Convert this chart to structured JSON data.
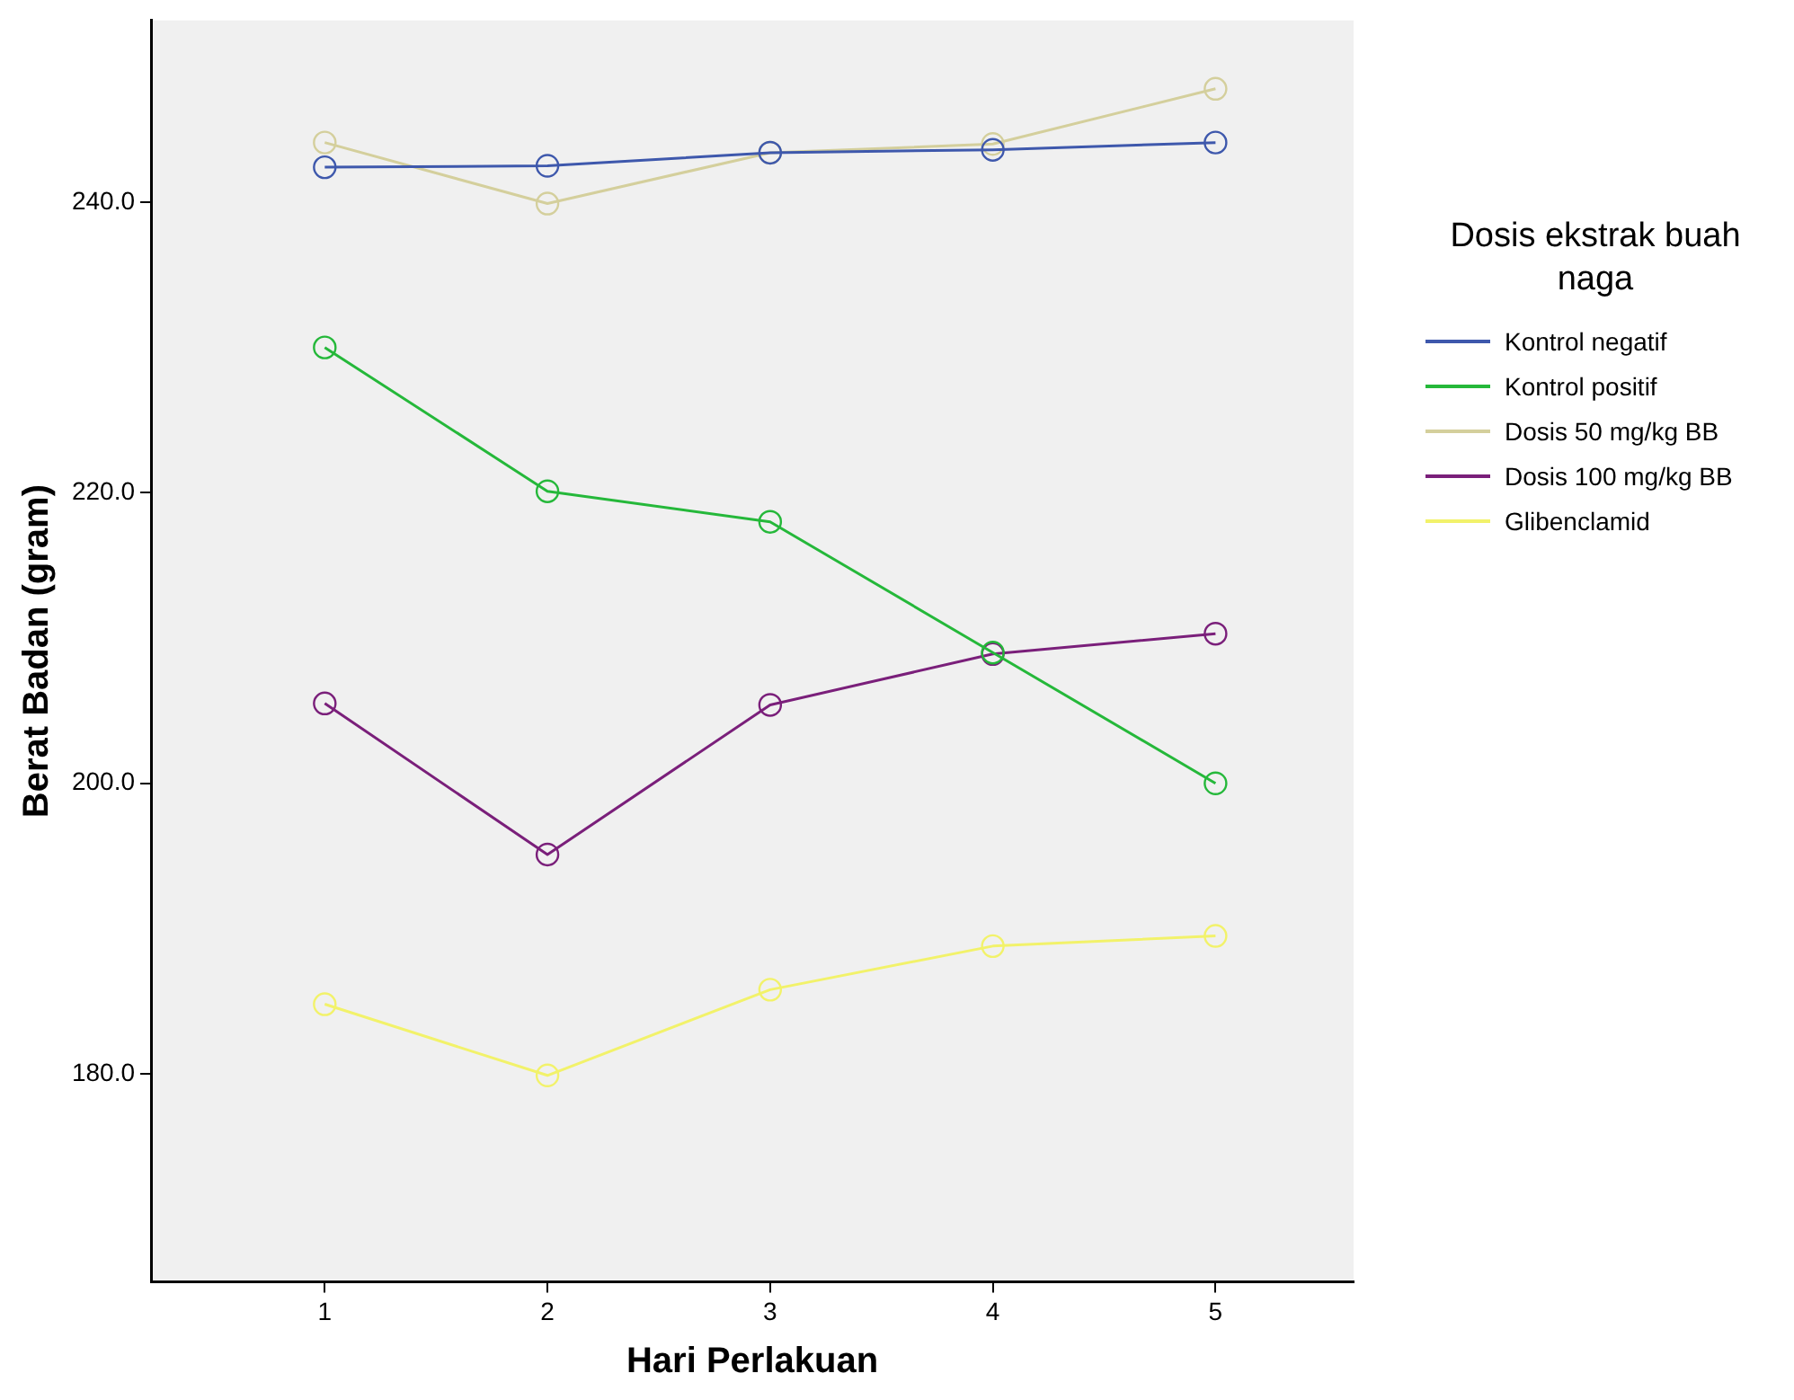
{
  "chart_data": {
    "type": "line",
    "xlabel": "Hari Perlakuan",
    "ylabel": "Berat Badan (gram)",
    "legend_title": "Dosis ekstrak buah naga",
    "legend": "right",
    "marker": "circle",
    "line_style": "solid",
    "grid": false,
    "x": [
      1,
      2,
      3,
      4,
      5
    ],
    "xlim": [
      0.22,
      5.62
    ],
    "xticks": [
      1,
      2,
      3,
      4,
      5
    ],
    "ylim": [
      165.7,
      252.5
    ],
    "yticks": [
      {
        "value": 180,
        "label": "180.0"
      },
      {
        "value": 200,
        "label": "200.0"
      },
      {
        "value": 220,
        "label": "220.0"
      },
      {
        "value": 240,
        "label": "240.0"
      }
    ],
    "series": [
      {
        "name": "Kontrol negatif",
        "color": "#3e58ac",
        "values": [
          242.4,
          242.5,
          243.4,
          243.6,
          244.1
        ]
      },
      {
        "name": "Kontrol positif",
        "color": "#25b83a",
        "values": [
          230.0,
          220.1,
          218.0,
          209.0,
          200.0
        ]
      },
      {
        "name": "Dosis 50 mg/kg BB",
        "color": "#d4cf9c",
        "values": [
          244.1,
          239.9,
          243.4,
          244.0,
          247.8
        ]
      },
      {
        "name": "Dosis 100 mg/kg BB",
        "color": "#7a1f7a",
        "values": [
          205.5,
          195.1,
          205.4,
          208.9,
          210.3
        ]
      },
      {
        "name": "Glibenclamid",
        "color": "#f2f26a",
        "values": [
          184.8,
          179.9,
          185.8,
          188.8,
          189.5
        ]
      }
    ]
  }
}
